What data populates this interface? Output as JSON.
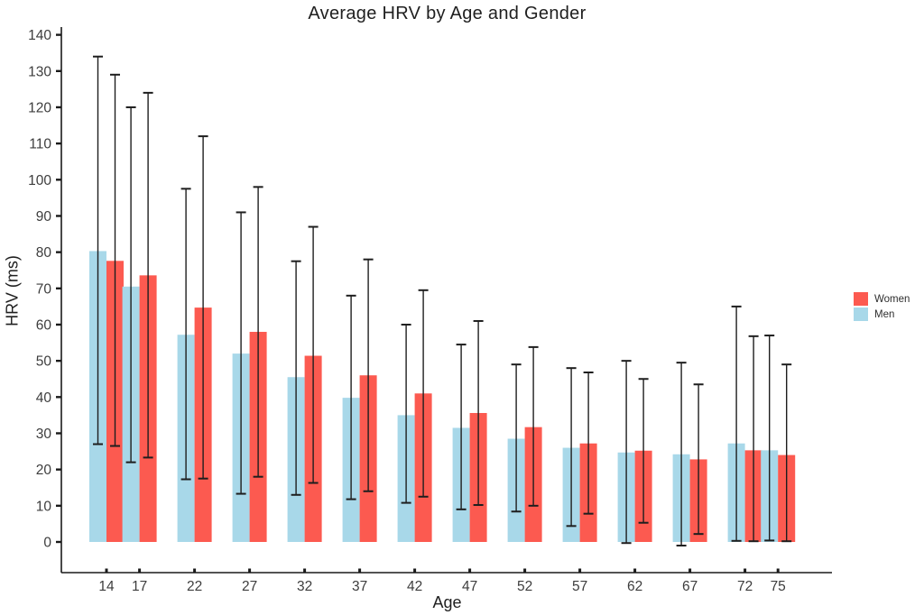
{
  "chart_data": {
    "type": "bar",
    "title": "Average HRV by Age and Gender",
    "xlabel": "Age",
    "ylabel": "HRV (ms)",
    "ylim": [
      0,
      140
    ],
    "yticks": [
      0,
      10,
      20,
      30,
      40,
      50,
      60,
      70,
      80,
      90,
      100,
      110,
      120,
      130,
      140
    ],
    "grid": false,
    "legend_position": "right-center",
    "error_bars": true,
    "categories": [
      14,
      17,
      22,
      27,
      32,
      37,
      42,
      47,
      52,
      57,
      62,
      67,
      72,
      75
    ],
    "series": [
      {
        "name": "Men",
        "color": "#A8D8E9",
        "values": [
          80.3,
          70.5,
          57.2,
          52.0,
          45.5,
          39.8,
          35.0,
          31.5,
          28.5,
          26.0,
          24.7,
          24.2,
          27.2,
          25.3
        ],
        "err_high": [
          134.0,
          120.0,
          97.5,
          91.0,
          77.5,
          68.0,
          60.0,
          54.5,
          49.0,
          48.0,
          50.0,
          49.5,
          65.0,
          57.0
        ],
        "err_low": [
          27.0,
          22.0,
          17.3,
          13.3,
          13.0,
          11.8,
          10.8,
          9.0,
          8.4,
          4.4,
          -0.3,
          -1.0,
          0.3,
          0.4
        ]
      },
      {
        "name": "Women",
        "color": "#FC5A50",
        "values": [
          77.6,
          73.6,
          64.7,
          58.0,
          51.4,
          46.0,
          41.0,
          35.6,
          31.7,
          27.2,
          25.2,
          22.8,
          25.3,
          24.0
        ],
        "err_high": [
          129.0,
          124.0,
          112.0,
          98.0,
          87.0,
          78.0,
          69.5,
          61.0,
          53.8,
          46.8,
          45.0,
          43.5,
          56.8,
          49.0
        ],
        "err_low": [
          26.5,
          23.3,
          17.5,
          18.0,
          16.3,
          14.0,
          12.5,
          10.2,
          10.0,
          7.8,
          5.3,
          2.2,
          0.2,
          0.2
        ]
      }
    ]
  },
  "legend": {
    "items": [
      {
        "label": "Women",
        "color": "#FC5A50"
      },
      {
        "label": "Men",
        "color": "#A8D8E9"
      }
    ]
  },
  "style": {
    "errorbar_color": "#1e1e1e",
    "axis_color": "#1a1a1a",
    "tick_label_color": "#3d3d3d"
  }
}
